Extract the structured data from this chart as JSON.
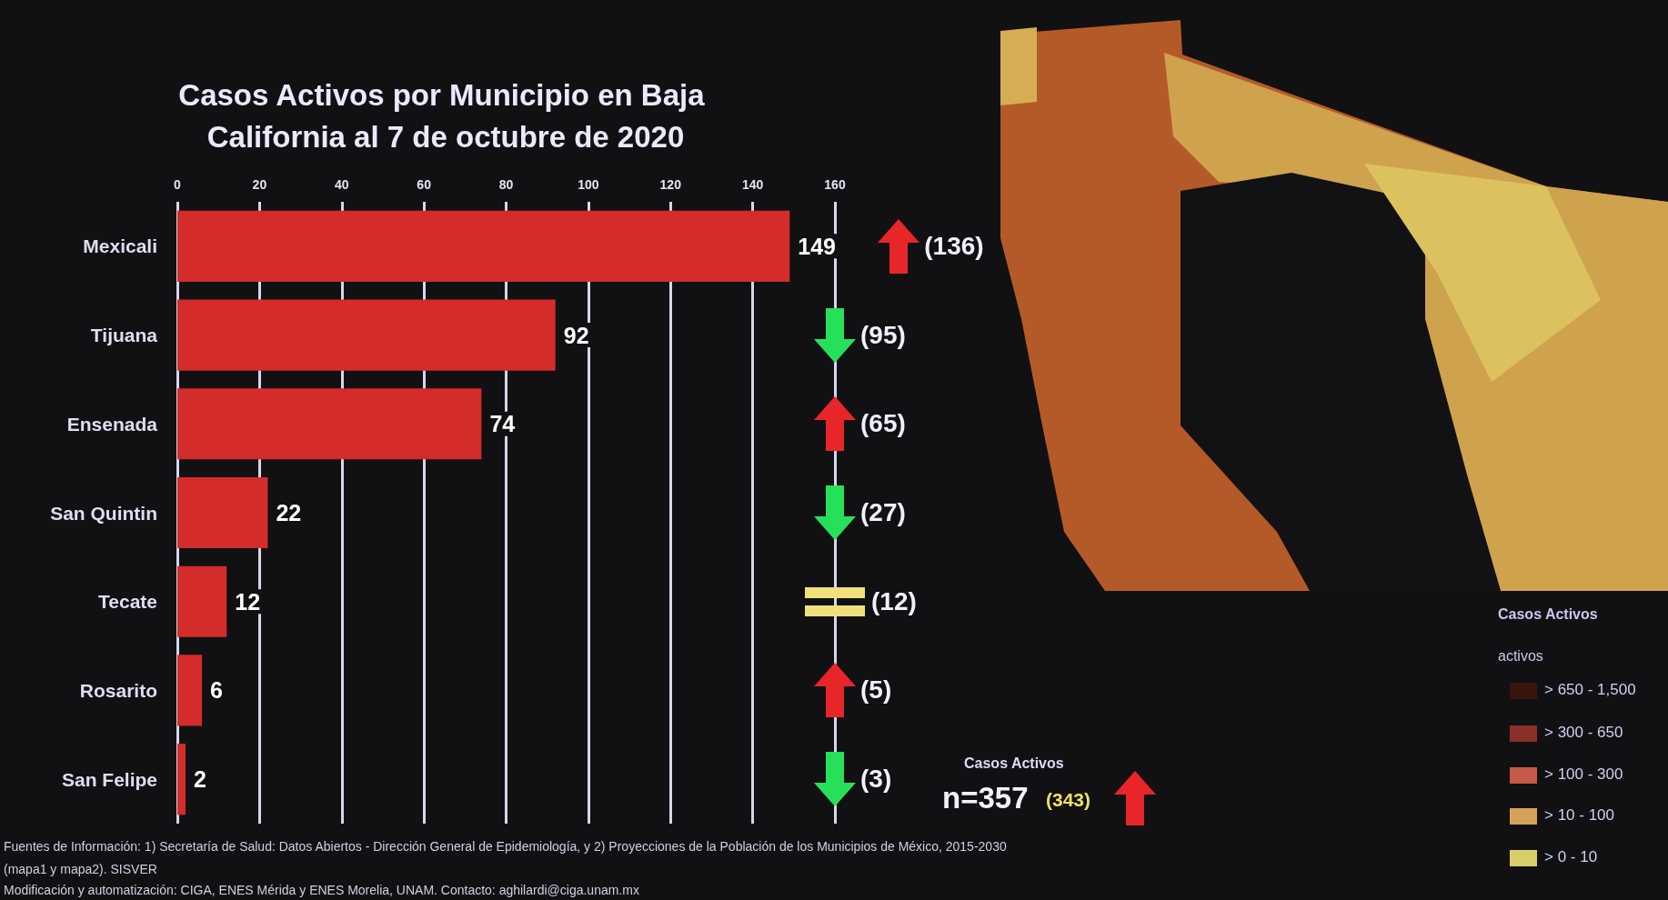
{
  "chart_data": {
    "type": "bar",
    "orientation": "horizontal",
    "title": "Casos Activos por Municipio en Baja California al 7 de octubre de 2020",
    "categories": [
      "Mexicali",
      "Tijuana",
      "Ensenada",
      "San Quintin",
      "Tecate",
      "Rosarito",
      "San Felipe"
    ],
    "values": [
      149,
      92,
      74,
      22,
      12,
      6,
      2
    ],
    "color": "#d42b2b",
    "xlim": [
      0,
      160
    ],
    "xticks": [
      0,
      20,
      40,
      60,
      80,
      100,
      120,
      140,
      160
    ],
    "grid": "x",
    "data_labels": true,
    "annotations": [
      "(136)",
      "(95)",
      "(65)",
      "(27)",
      "(12)",
      "(5)",
      "(3)",
      "Casos Activos",
      "n=357",
      "(343)",
      "Fuentes de Información: 1) Secretaría de Salud: Datos Abiertos - Dirección General de Epidemiología, y 2) Proyecciones de la Población de los Municipios de México, 2015-2030",
      "(mapa1 y mapa2). SISVER",
      "Modificación y automatización: CIGA, ENES Mérida y ENES Morelia, UNAM. Contacto: aghilardi@ciga.unam.mx",
      "Casos Activos",
      "activos",
      "> 650 - 1,500",
      "> 300 - 650",
      "> 100 - 300",
      "> 10 - 100",
      "> 0 - 10"
    ]
  }
}
